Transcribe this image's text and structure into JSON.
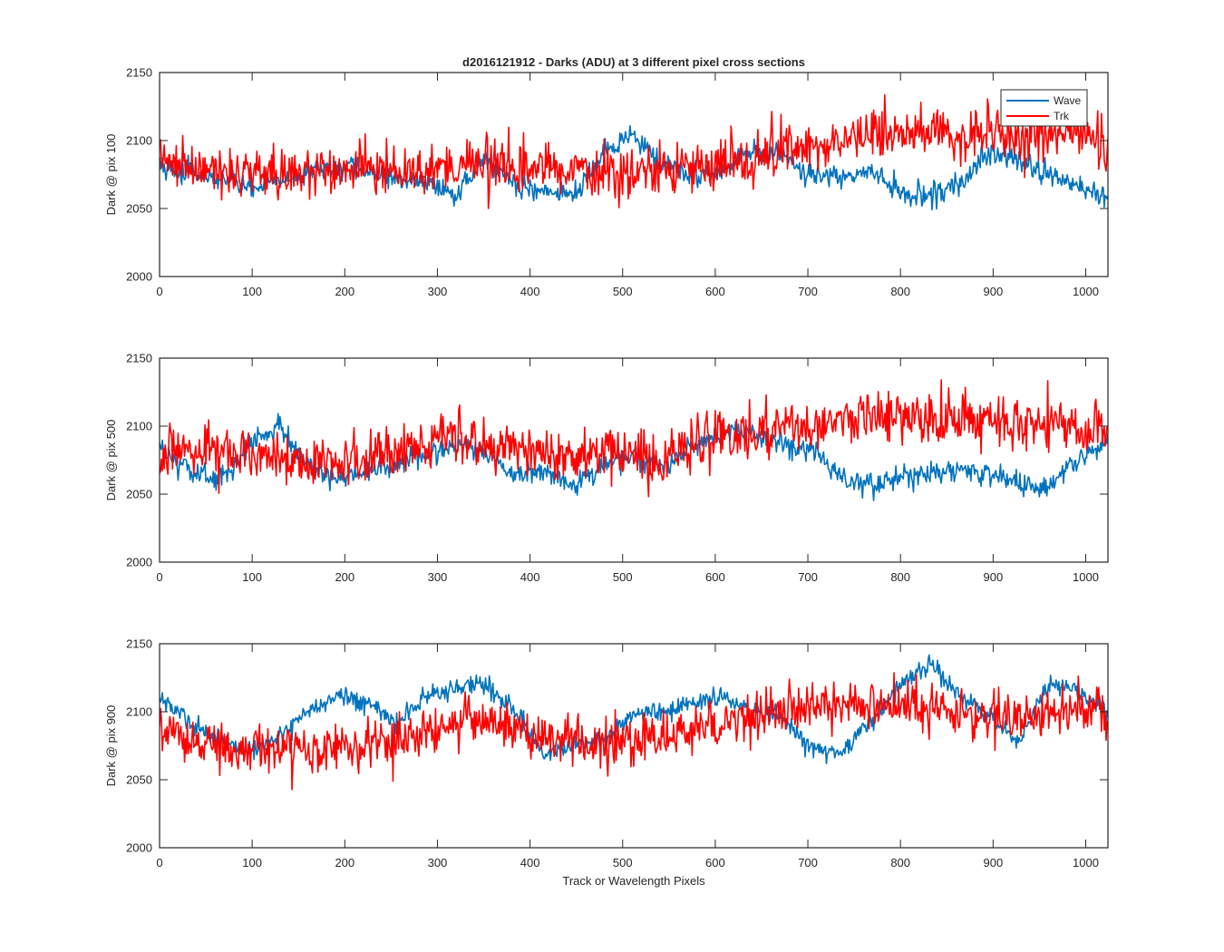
{
  "figure": {
    "title": "d2016121912 - Darks (ADU) at 3 different pixel cross sections",
    "xlabel": "Track or Wavelength Pixels"
  },
  "legend": {
    "placement": "top-right of first panel",
    "entries": [
      {
        "name": "Wave",
        "color": "#0072BD"
      },
      {
        "name": "Trk",
        "color": "#FF0000"
      }
    ]
  },
  "chart_data": [
    {
      "type": "line",
      "ylabel": "Dark @ pix 100",
      "xlim": [
        0,
        1024
      ],
      "ylim": [
        2000,
        2150
      ],
      "xticks": [
        0,
        100,
        200,
        300,
        400,
        500,
        600,
        700,
        800,
        900,
        1000
      ],
      "yticks": [
        2000,
        2050,
        2100,
        2150
      ],
      "grid": false,
      "series": [
        {
          "name": "Wave",
          "color": "#0072BD",
          "x": [
            0,
            32,
            64,
            96,
            128,
            160,
            192,
            224,
            256,
            288,
            320,
            352,
            384,
            416,
            448,
            480,
            512,
            544,
            576,
            608,
            640,
            672,
            704,
            736,
            768,
            800,
            832,
            864,
            896,
            928,
            960,
            992,
            1024
          ],
          "values": [
            2082,
            2076,
            2072,
            2066,
            2070,
            2076,
            2080,
            2078,
            2072,
            2070,
            2062,
            2086,
            2068,
            2062,
            2060,
            2090,
            2104,
            2082,
            2074,
            2078,
            2092,
            2088,
            2074,
            2072,
            2078,
            2062,
            2060,
            2068,
            2090,
            2086,
            2074,
            2066,
            2056
          ],
          "noise": 7
        },
        {
          "name": "Trk",
          "color": "#FF0000",
          "x": [
            0,
            32,
            64,
            96,
            128,
            160,
            192,
            224,
            256,
            288,
            320,
            352,
            384,
            416,
            448,
            480,
            512,
            544,
            576,
            608,
            640,
            672,
            704,
            736,
            768,
            800,
            832,
            864,
            896,
            928,
            960,
            992,
            1024
          ],
          "values": [
            2086,
            2078,
            2078,
            2078,
            2075,
            2075,
            2077,
            2083,
            2077,
            2081,
            2084,
            2082,
            2080,
            2082,
            2078,
            2078,
            2078,
            2078,
            2080,
            2084,
            2088,
            2094,
            2098,
            2100,
            2104,
            2106,
            2106,
            2104,
            2106,
            2104,
            2106,
            2108,
            2096
          ],
          "noise": 16
        }
      ]
    },
    {
      "type": "line",
      "ylabel": "Dark @ pix 500",
      "xlim": [
        0,
        1024
      ],
      "ylim": [
        2000,
        2150
      ],
      "xticks": [
        0,
        100,
        200,
        300,
        400,
        500,
        600,
        700,
        800,
        900,
        1000
      ],
      "yticks": [
        2000,
        2050,
        2100,
        2150
      ],
      "grid": false,
      "series": [
        {
          "name": "Wave",
          "color": "#0072BD",
          "x": [
            0,
            32,
            64,
            96,
            128,
            160,
            192,
            224,
            256,
            288,
            320,
            352,
            384,
            416,
            448,
            480,
            512,
            544,
            576,
            608,
            640,
            672,
            704,
            736,
            768,
            800,
            832,
            864,
            896,
            928,
            960,
            992,
            1024
          ],
          "values": [
            2082,
            2068,
            2060,
            2085,
            2102,
            2070,
            2062,
            2066,
            2072,
            2078,
            2086,
            2080,
            2062,
            2068,
            2056,
            2072,
            2078,
            2070,
            2084,
            2094,
            2096,
            2086,
            2082,
            2062,
            2058,
            2062,
            2066,
            2068,
            2064,
            2058,
            2054,
            2074,
            2090
          ],
          "noise": 7
        },
        {
          "name": "Trk",
          "color": "#FF0000",
          "x": [
            0,
            32,
            64,
            96,
            128,
            160,
            192,
            224,
            256,
            288,
            320,
            352,
            384,
            416,
            448,
            480,
            512,
            544,
            576,
            608,
            640,
            672,
            704,
            736,
            768,
            800,
            832,
            864,
            896,
            928,
            960,
            992,
            1024
          ],
          "values": [
            2078,
            2082,
            2082,
            2080,
            2076,
            2074,
            2074,
            2076,
            2082,
            2090,
            2096,
            2086,
            2080,
            2078,
            2076,
            2080,
            2076,
            2072,
            2088,
            2096,
            2094,
            2098,
            2100,
            2104,
            2106,
            2108,
            2106,
            2104,
            2104,
            2102,
            2100,
            2098,
            2100
          ],
          "noise": 16
        }
      ]
    },
    {
      "type": "line",
      "ylabel": "Dark @ pix 900",
      "xlim": [
        0,
        1024
      ],
      "ylim": [
        2000,
        2150
      ],
      "xticks": [
        0,
        100,
        200,
        300,
        400,
        500,
        600,
        700,
        800,
        900,
        1000
      ],
      "yticks": [
        2000,
        2050,
        2100,
        2150
      ],
      "grid": false,
      "series": [
        {
          "name": "Wave",
          "color": "#0072BD",
          "x": [
            0,
            32,
            64,
            96,
            128,
            160,
            192,
            224,
            256,
            288,
            320,
            352,
            384,
            416,
            448,
            480,
            512,
            544,
            576,
            608,
            640,
            672,
            704,
            736,
            768,
            800,
            832,
            864,
            896,
            928,
            960,
            992,
            1024
          ],
          "values": [
            2110,
            2092,
            2080,
            2070,
            2082,
            2100,
            2112,
            2106,
            2092,
            2112,
            2118,
            2120,
            2100,
            2068,
            2076,
            2080,
            2098,
            2100,
            2106,
            2112,
            2100,
            2096,
            2072,
            2070,
            2094,
            2118,
            2136,
            2112,
            2096,
            2078,
            2122,
            2116,
            2100
          ],
          "noise": 6
        },
        {
          "name": "Trk",
          "color": "#FF0000",
          "x": [
            0,
            32,
            64,
            96,
            128,
            160,
            192,
            224,
            256,
            288,
            320,
            352,
            384,
            416,
            448,
            480,
            512,
            544,
            576,
            608,
            640,
            672,
            704,
            736,
            768,
            800,
            832,
            864,
            896,
            928,
            960,
            992,
            1024
          ],
          "values": [
            2088,
            2078,
            2076,
            2074,
            2072,
            2070,
            2072,
            2074,
            2080,
            2088,
            2092,
            2090,
            2086,
            2082,
            2080,
            2078,
            2080,
            2082,
            2086,
            2090,
            2096,
            2100,
            2104,
            2104,
            2104,
            2104,
            2102,
            2098,
            2098,
            2096,
            2100,
            2102,
            2100
          ],
          "noise": 15
        }
      ]
    }
  ]
}
